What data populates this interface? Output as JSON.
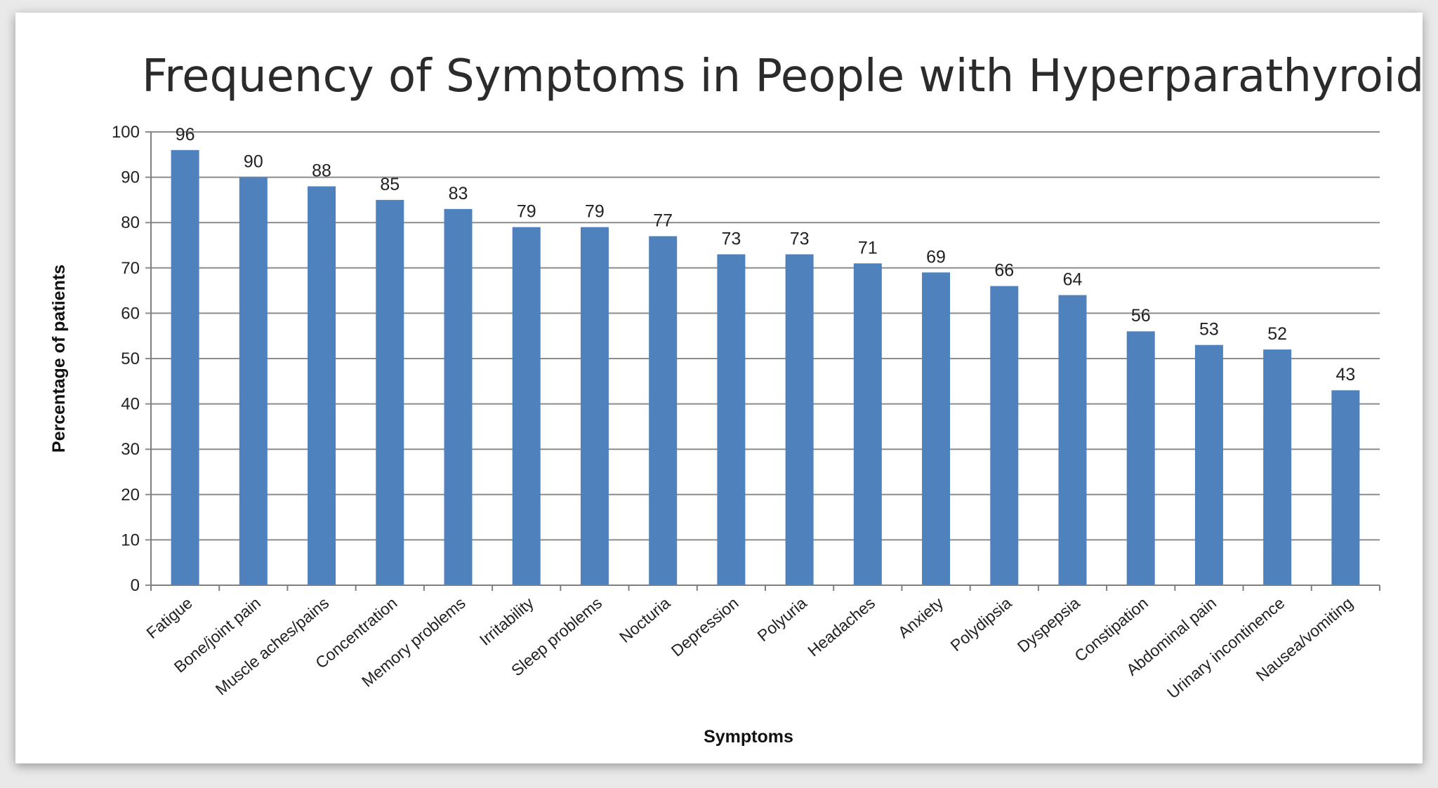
{
  "chart_data": {
    "type": "bar",
    "title": "Frequency of Symptoms in People with Hyperparathyroidism",
    "xlabel": "Symptoms",
    "ylabel": "Percentage of patients",
    "ylim": [
      0,
      100
    ],
    "yticks": [
      0,
      10,
      20,
      30,
      40,
      50,
      60,
      70,
      80,
      90,
      100
    ],
    "grid": true,
    "bar_color": "#4f81bd",
    "categories": [
      "Fatigue",
      "Bone/joint pain",
      "Muscle aches/pains",
      "Concentration",
      "Memory problems",
      "Irritability",
      "Sleep problems",
      "Nocturia",
      "Depression",
      "Polyuria",
      "Headaches",
      "Anxiety",
      "Polydipsia",
      "Dyspepsia",
      "Constipation",
      "Abdominal pain",
      "Urinary incontinence",
      "Nausea/vomiting"
    ],
    "values": [
      96,
      90,
      88,
      85,
      83,
      79,
      79,
      77,
      73,
      73,
      71,
      69,
      66,
      64,
      56,
      53,
      52,
      43
    ]
  }
}
